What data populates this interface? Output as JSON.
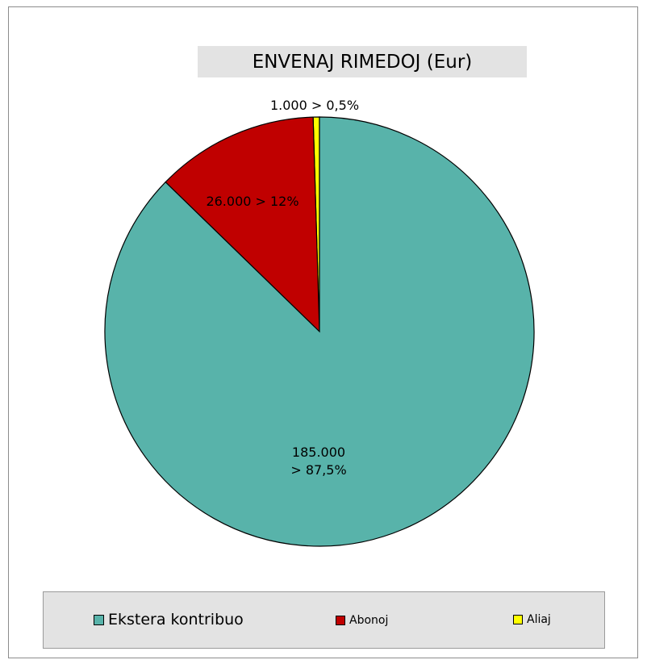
{
  "chart_data": {
    "type": "pie",
    "title": "ENVENAJ RIMEDOJ (Eur)",
    "slices": [
      {
        "name": "Aliaj",
        "value": 1000,
        "percent": 0.5,
        "label_line1": "1.000 > 0,5%",
        "label_line2": "",
        "color": "#ffff00"
      },
      {
        "name": "Abonoj",
        "value": 26000,
        "percent": 12,
        "label_line1": "26.000 > 12%",
        "label_line2": "",
        "color": "#c00000"
      },
      {
        "name": "Ekstera kontribuo",
        "value": 185000,
        "percent": 87.5,
        "label_line1": "185.000",
        "label_line2": "> 87,5%",
        "color": "#58b3aa"
      }
    ],
    "legend": {
      "placement": "bottom",
      "items": [
        "Ekstera kontribuo",
        "Abonoj",
        "Aliaj"
      ]
    }
  }
}
